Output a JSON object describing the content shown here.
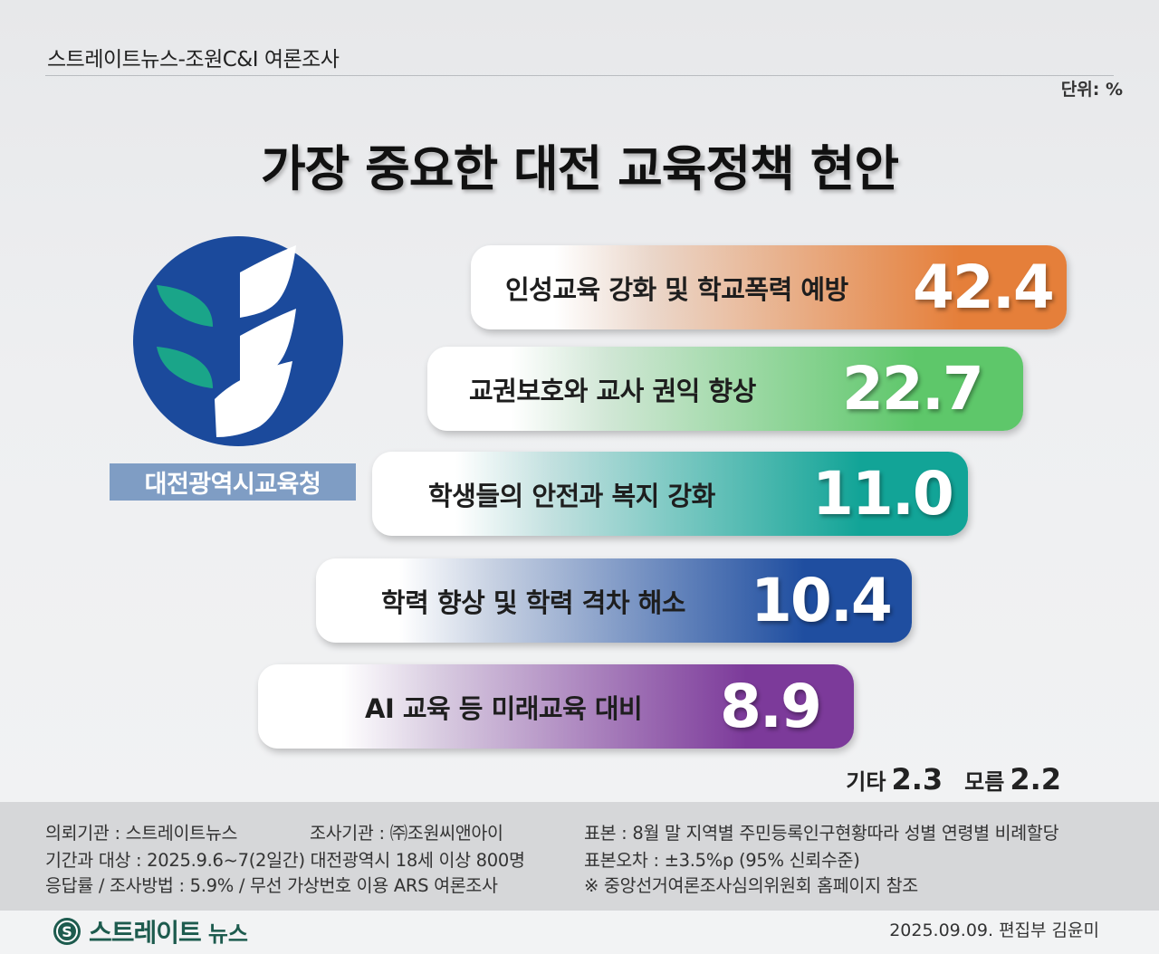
{
  "header": {
    "source": "스트레이트뉴스-조원C&I 여론조사",
    "unit": "단위: %"
  },
  "chart_data": {
    "type": "bar",
    "title": "가장 중요한 대전 교육정책 현안",
    "categories": [
      "인성교육 강화  및 학교폭력 예방",
      "교권보호와 교사 권익 향상",
      "학생들의 안전과 복지 강화",
      "학력 향상 및 학력 격차 해소",
      "AI 교육 등 미래교육 대비"
    ],
    "values": [
      42.4,
      22.7,
      11.0,
      10.4,
      8.9
    ],
    "value_labels": [
      "42.4",
      "22.7",
      "11.0",
      "10.4",
      "8.9"
    ],
    "colors": [
      "#e57f3a",
      "#5ec76a",
      "#12a497",
      "#1f4ea0",
      "#7c3a9a"
    ],
    "others": {
      "label1": "기타",
      "value1": "2.3",
      "label2": "모름",
      "value2": "2.2"
    }
  },
  "logo": {
    "label": "대전광역시교육청",
    "color": "#1b4a9c",
    "leaf_color": "#1aa589"
  },
  "footer": {
    "col1": [
      "의뢰기관 : 스트레이트뉴스",
      "기간과 대상 : 2025.9.6~7(2일간) 대전광역시  18세 이상 800명",
      "응답률 / 조사방법 : 5.9% / 무선 가상번호 이용 ARS 여론조사"
    ],
    "col2": "조사기관 : ㈜조원씨앤아이",
    "col3": [
      "표본 : 8월 말 지역별 주민등록인구현황따라 성별 연령별 비례할당",
      "표본오차 : ±3.5%p (95% 신뢰수준)",
      "※ 중앙선거여론조사심의위원회 홈페이지 참조"
    ],
    "brand": "스트레이트",
    "brand_sub": "뉴스",
    "credit": "2025.09.09. 편집부 김윤미"
  }
}
